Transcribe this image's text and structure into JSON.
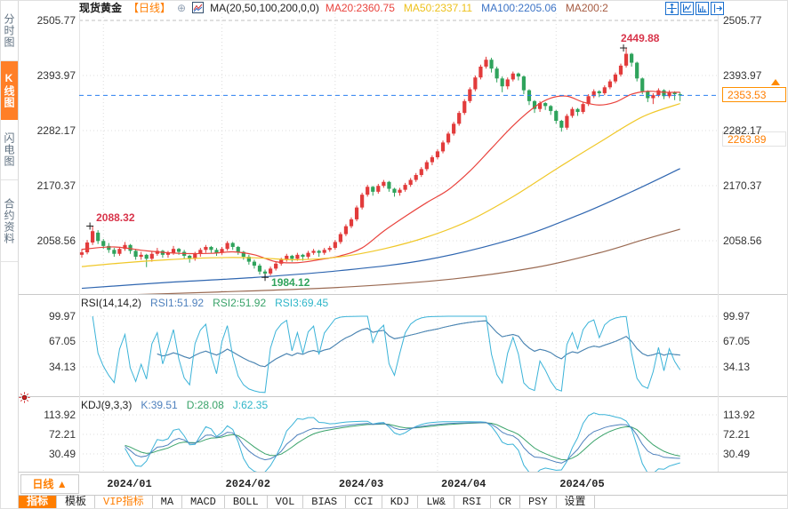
{
  "app": {
    "accent": "#ff7e00"
  },
  "sidebar": {
    "items": [
      {
        "label": "分时图",
        "selected": false
      },
      {
        "label": "K线图",
        "selected": true
      },
      {
        "label": "闪电图",
        "selected": false
      },
      {
        "label": "合约资料",
        "selected": false
      }
    ]
  },
  "header": {
    "title": "现货黄金",
    "period": "【日线】",
    "add_icon": "⊕",
    "ma_label": "MA(20,50,100,200,0,0)",
    "ma_values": [
      {
        "text": "MA20:2360.75",
        "color": "#e9433d"
      },
      {
        "text": "MA50:2337.11",
        "color": "#edc11c"
      },
      {
        "text": "MA100:2205.06",
        "color": "#3d74c6"
      },
      {
        "text": "MA200:2",
        "color": "#a65b41"
      }
    ]
  },
  "main_chart": {
    "current_price_label": "2353.53",
    "secondary_price_label": "2263.89",
    "first_high_label": "2088.32",
    "low_label": "1984.12",
    "high_label": "2449.88",
    "period_box": "日线 ▲",
    "x_labels": [
      "2024/01",
      "2024/02",
      "2024/03",
      "2024/04",
      "2024/05"
    ]
  },
  "rsi_pane": {
    "title": "RSI(14,14,2)",
    "values": [
      {
        "text": "RSI1:51.92",
        "color": "#4f81bd"
      },
      {
        "text": "RSI2:51.92",
        "color": "#3aa36a"
      },
      {
        "text": "RSI3:69.45",
        "color": "#2fb6c9"
      }
    ],
    "ticks": [
      99.97,
      67.05,
      34.13
    ]
  },
  "kdj_pane": {
    "title": "KDJ(9,3,3)",
    "values": [
      {
        "text": "K:39.51",
        "color": "#4f81bd"
      },
      {
        "text": "D:28.08",
        "color": "#3aa36a"
      },
      {
        "text": "J:62.35",
        "color": "#2fb6c9"
      }
    ],
    "ticks": [
      113.92,
      72.21,
      30.49
    ]
  },
  "bottom_tabs": [
    {
      "label": "指标",
      "state": "selected"
    },
    {
      "label": "模板",
      "state": "normal"
    },
    {
      "label": "VIP指标",
      "state": "vip"
    },
    {
      "label": "MA",
      "state": "normal"
    },
    {
      "label": "MACD",
      "state": "normal"
    },
    {
      "label": "BOLL",
      "state": "normal"
    },
    {
      "label": "VOL",
      "state": "normal"
    },
    {
      "label": "BIAS",
      "state": "normal"
    },
    {
      "label": "CCI",
      "state": "normal"
    },
    {
      "label": "KDJ",
      "state": "normal"
    },
    {
      "label": "LW&",
      "state": "normal"
    },
    {
      "label": "RSI",
      "state": "normal"
    },
    {
      "label": "CR",
      "state": "normal"
    },
    {
      "label": "PSY",
      "state": "normal"
    },
    {
      "label": "设置",
      "state": "normal"
    }
  ],
  "chart_data": {
    "type": "candlestick",
    "title": "现货黄金 日线",
    "y_axis_ticks": [
      2505.77,
      2393.97,
      2282.17,
      2170.37,
      2058.56
    ],
    "rsi_axis_ticks": [
      99.97,
      67.05,
      34.13
    ],
    "kdj_axis_ticks": [
      113.92,
      72.21,
      30.49
    ],
    "x_labels": [
      "2024/01",
      "2024/02",
      "2024/03",
      "2024/04",
      "2024/05"
    ],
    "month_start_indices": [
      4,
      26,
      47,
      66,
      88
    ],
    "current_price": 2353.53,
    "secondary_price": 2263.89,
    "rsi_params": [
      14,
      14,
      2
    ],
    "kdj_params": [
      9,
      3,
      3
    ],
    "annotations": {
      "first_high": {
        "index": 2,
        "price": 2088.32
      },
      "low": {
        "index": 34,
        "price": 1984.12
      },
      "high": {
        "index": 101,
        "price": 2449.88
      }
    },
    "colors": {
      "up": "#e23b3b",
      "down": "#2fa35c",
      "ma20": "#e9433d",
      "ma50": "#f0c829",
      "ma100": "#2f66b0",
      "ma200": "#9a6a52",
      "current_line": "#2a7ff0",
      "grid": "#dcdcdc",
      "grid_top": "#bfbfbf",
      "sep": "#c9c9c9",
      "rsi1": "#4f81bd",
      "rsi2": "#3aa36a",
      "rsi3": "#3bb3d8",
      "k": "#4f81bd",
      "d": "#3aa36a",
      "j": "#3bb3d8"
    },
    "candles": [
      [
        2030,
        2042,
        2024,
        2035
      ],
      [
        2035,
        2060,
        2031,
        2055
      ],
      [
        2055,
        2088.32,
        2050,
        2078
      ],
      [
        2075,
        2080,
        2052,
        2058
      ],
      [
        2058,
        2062,
        2042,
        2048
      ],
      [
        2048,
        2054,
        2034,
        2040
      ],
      [
        2040,
        2044,
        2026,
        2032
      ],
      [
        2032,
        2046,
        2028,
        2042
      ],
      [
        2042,
        2056,
        2038,
        2050
      ],
      [
        2050,
        2052,
        2032,
        2038
      ],
      [
        2038,
        2042,
        2020,
        2026
      ],
      [
        2026,
        2036,
        2020,
        2030
      ],
      [
        2030,
        2032,
        2005,
        2022
      ],
      [
        2022,
        2036,
        2016,
        2032
      ],
      [
        2032,
        2044,
        2028,
        2038
      ],
      [
        2038,
        2040,
        2024,
        2030
      ],
      [
        2030,
        2038,
        2024,
        2034
      ],
      [
        2034,
        2048,
        2030,
        2042
      ],
      [
        2042,
        2044,
        2030,
        2036
      ],
      [
        2036,
        2040,
        2022,
        2028
      ],
      [
        2028,
        2030,
        2014,
        2022
      ],
      [
        2022,
        2036,
        2018,
        2032
      ],
      [
        2032,
        2044,
        2026,
        2040
      ],
      [
        2040,
        2050,
        2034,
        2046
      ],
      [
        2046,
        2048,
        2034,
        2040
      ],
      [
        2040,
        2044,
        2028,
        2034
      ],
      [
        2034,
        2046,
        2030,
        2042
      ],
      [
        2042,
        2058,
        2038,
        2054
      ],
      [
        2054,
        2056,
        2040,
        2046
      ],
      [
        2046,
        2048,
        2030,
        2036
      ],
      [
        2036,
        2038,
        2020,
        2026
      ],
      [
        2026,
        2030,
        2010,
        2016
      ],
      [
        2016,
        2020,
        2002,
        2008
      ],
      [
        2008,
        2012,
        1990,
        1996
      ],
      [
        1996,
        2000,
        1984.12,
        1992
      ],
      [
        1992,
        2006,
        1988,
        2002
      ],
      [
        2002,
        2016,
        1998,
        2012
      ],
      [
        2012,
        2024,
        2008,
        2020
      ],
      [
        2020,
        2032,
        2016,
        2028
      ],
      [
        2028,
        2030,
        2016,
        2022
      ],
      [
        2022,
        2034,
        2018,
        2030
      ],
      [
        2030,
        2032,
        2018,
        2026
      ],
      [
        2026,
        2038,
        2022,
        2034
      ],
      [
        2034,
        2042,
        2030,
        2038
      ],
      [
        2038,
        2040,
        2026,
        2034
      ],
      [
        2034,
        2044,
        2030,
        2040
      ],
      [
        2040,
        2048,
        2036,
        2044
      ],
      [
        2044,
        2060,
        2040,
        2056
      ],
      [
        2056,
        2076,
        2052,
        2072
      ],
      [
        2072,
        2092,
        2068,
        2088
      ],
      [
        2088,
        2106,
        2084,
        2102
      ],
      [
        2102,
        2130,
        2098,
        2126
      ],
      [
        2126,
        2156,
        2122,
        2152
      ],
      [
        2152,
        2172,
        2148,
        2168
      ],
      [
        2168,
        2170,
        2150,
        2158
      ],
      [
        2158,
        2174,
        2154,
        2170
      ],
      [
        2170,
        2182,
        2166,
        2178
      ],
      [
        2178,
        2180,
        2158,
        2164
      ],
      [
        2164,
        2166,
        2148,
        2156
      ],
      [
        2156,
        2166,
        2150,
        2162
      ],
      [
        2162,
        2176,
        2158,
        2172
      ],
      [
        2172,
        2186,
        2168,
        2182
      ],
      [
        2182,
        2196,
        2178,
        2192
      ],
      [
        2192,
        2208,
        2188,
        2204
      ],
      [
        2204,
        2222,
        2200,
        2218
      ],
      [
        2218,
        2232,
        2212,
        2228
      ],
      [
        2228,
        2244,
        2224,
        2240
      ],
      [
        2240,
        2262,
        2236,
        2258
      ],
      [
        2258,
        2280,
        2254,
        2276
      ],
      [
        2276,
        2300,
        2272,
        2296
      ],
      [
        2296,
        2322,
        2292,
        2318
      ],
      [
        2318,
        2346,
        2314,
        2342
      ],
      [
        2342,
        2370,
        2338,
        2366
      ],
      [
        2366,
        2394,
        2362,
        2390
      ],
      [
        2390,
        2416,
        2386,
        2412
      ],
      [
        2412,
        2432,
        2408,
        2426
      ],
      [
        2426,
        2430,
        2400,
        2408
      ],
      [
        2408,
        2412,
        2380,
        2388
      ],
      [
        2388,
        2392,
        2360,
        2372
      ],
      [
        2372,
        2390,
        2366,
        2386
      ],
      [
        2386,
        2402,
        2382,
        2398
      ],
      [
        2398,
        2400,
        2384,
        2392
      ],
      [
        2392,
        2394,
        2356,
        2364
      ],
      [
        2364,
        2366,
        2334,
        2342
      ],
      [
        2342,
        2344,
        2318,
        2326
      ],
      [
        2326,
        2342,
        2320,
        2338
      ],
      [
        2338,
        2340,
        2324,
        2332
      ],
      [
        2332,
        2334,
        2314,
        2322
      ],
      [
        2322,
        2324,
        2296,
        2302
      ],
      [
        2302,
        2304,
        2280,
        2288
      ],
      [
        2288,
        2316,
        2284,
        2312
      ],
      [
        2312,
        2330,
        2308,
        2326
      ],
      [
        2326,
        2328,
        2312,
        2320
      ],
      [
        2320,
        2340,
        2316,
        2336
      ],
      [
        2336,
        2356,
        2332,
        2352
      ],
      [
        2352,
        2366,
        2348,
        2362
      ],
      [
        2362,
        2364,
        2350,
        2358
      ],
      [
        2358,
        2374,
        2354,
        2370
      ],
      [
        2370,
        2386,
        2366,
        2382
      ],
      [
        2382,
        2400,
        2378,
        2396
      ],
      [
        2396,
        2418,
        2392,
        2414
      ],
      [
        2414,
        2449.88,
        2410,
        2438
      ],
      [
        2438,
        2440,
        2412,
        2420
      ],
      [
        2420,
        2422,
        2382,
        2388
      ],
      [
        2388,
        2390,
        2356,
        2362
      ],
      [
        2362,
        2364,
        2340,
        2348
      ],
      [
        2348,
        2358,
        2336,
        2354
      ],
      [
        2354,
        2368,
        2350,
        2364
      ],
      [
        2364,
        2366,
        2346,
        2352
      ],
      [
        2352,
        2364,
        2348,
        2360
      ],
      [
        2360,
        2362,
        2344,
        2356
      ],
      [
        2356,
        2360,
        2342,
        2353.53
      ]
    ],
    "ma_lines": [
      {
        "name": "MA20",
        "color_key": "ma20",
        "points": [
          [
            0,
            2041
          ],
          [
            6,
            2046
          ],
          [
            12,
            2038
          ],
          [
            18,
            2033
          ],
          [
            24,
            2033
          ],
          [
            28,
            2036
          ],
          [
            32,
            2030
          ],
          [
            36,
            2016
          ],
          [
            40,
            2014
          ],
          [
            44,
            2020
          ],
          [
            48,
            2028
          ],
          [
            52,
            2044
          ],
          [
            56,
            2078
          ],
          [
            60,
            2108
          ],
          [
            64,
            2136
          ],
          [
            68,
            2162
          ],
          [
            72,
            2200
          ],
          [
            76,
            2246
          ],
          [
            80,
            2292
          ],
          [
            84,
            2330
          ],
          [
            87,
            2348
          ],
          [
            90,
            2352
          ],
          [
            93,
            2340
          ],
          [
            96,
            2334
          ],
          [
            99,
            2340
          ],
          [
            102,
            2356
          ],
          [
            105,
            2362
          ],
          [
            108,
            2360
          ],
          [
            111,
            2360
          ]
        ]
      },
      {
        "name": "MA50",
        "color_key": "ma50",
        "points": [
          [
            0,
            2006
          ],
          [
            8,
            2014
          ],
          [
            16,
            2020
          ],
          [
            24,
            2024
          ],
          [
            32,
            2024
          ],
          [
            40,
            2020
          ],
          [
            48,
            2026
          ],
          [
            56,
            2042
          ],
          [
            64,
            2066
          ],
          [
            72,
            2100
          ],
          [
            80,
            2148
          ],
          [
            88,
            2204
          ],
          [
            96,
            2258
          ],
          [
            104,
            2310
          ],
          [
            111,
            2337
          ]
        ]
      },
      {
        "name": "MA100",
        "color_key": "ma100",
        "points": [
          [
            0,
            1962
          ],
          [
            16,
            1974
          ],
          [
            32,
            1984
          ],
          [
            48,
            1998
          ],
          [
            64,
            2020
          ],
          [
            80,
            2062
          ],
          [
            92,
            2110
          ],
          [
            102,
            2158
          ],
          [
            111,
            2205
          ]
        ]
      },
      {
        "name": "MA200",
        "color_key": "ma200",
        "points": [
          [
            0,
            1946
          ],
          [
            24,
            1954
          ],
          [
            48,
            1964
          ],
          [
            68,
            1980
          ],
          [
            84,
            2004
          ],
          [
            96,
            2034
          ],
          [
            104,
            2060
          ],
          [
            111,
            2082
          ]
        ]
      }
    ]
  }
}
